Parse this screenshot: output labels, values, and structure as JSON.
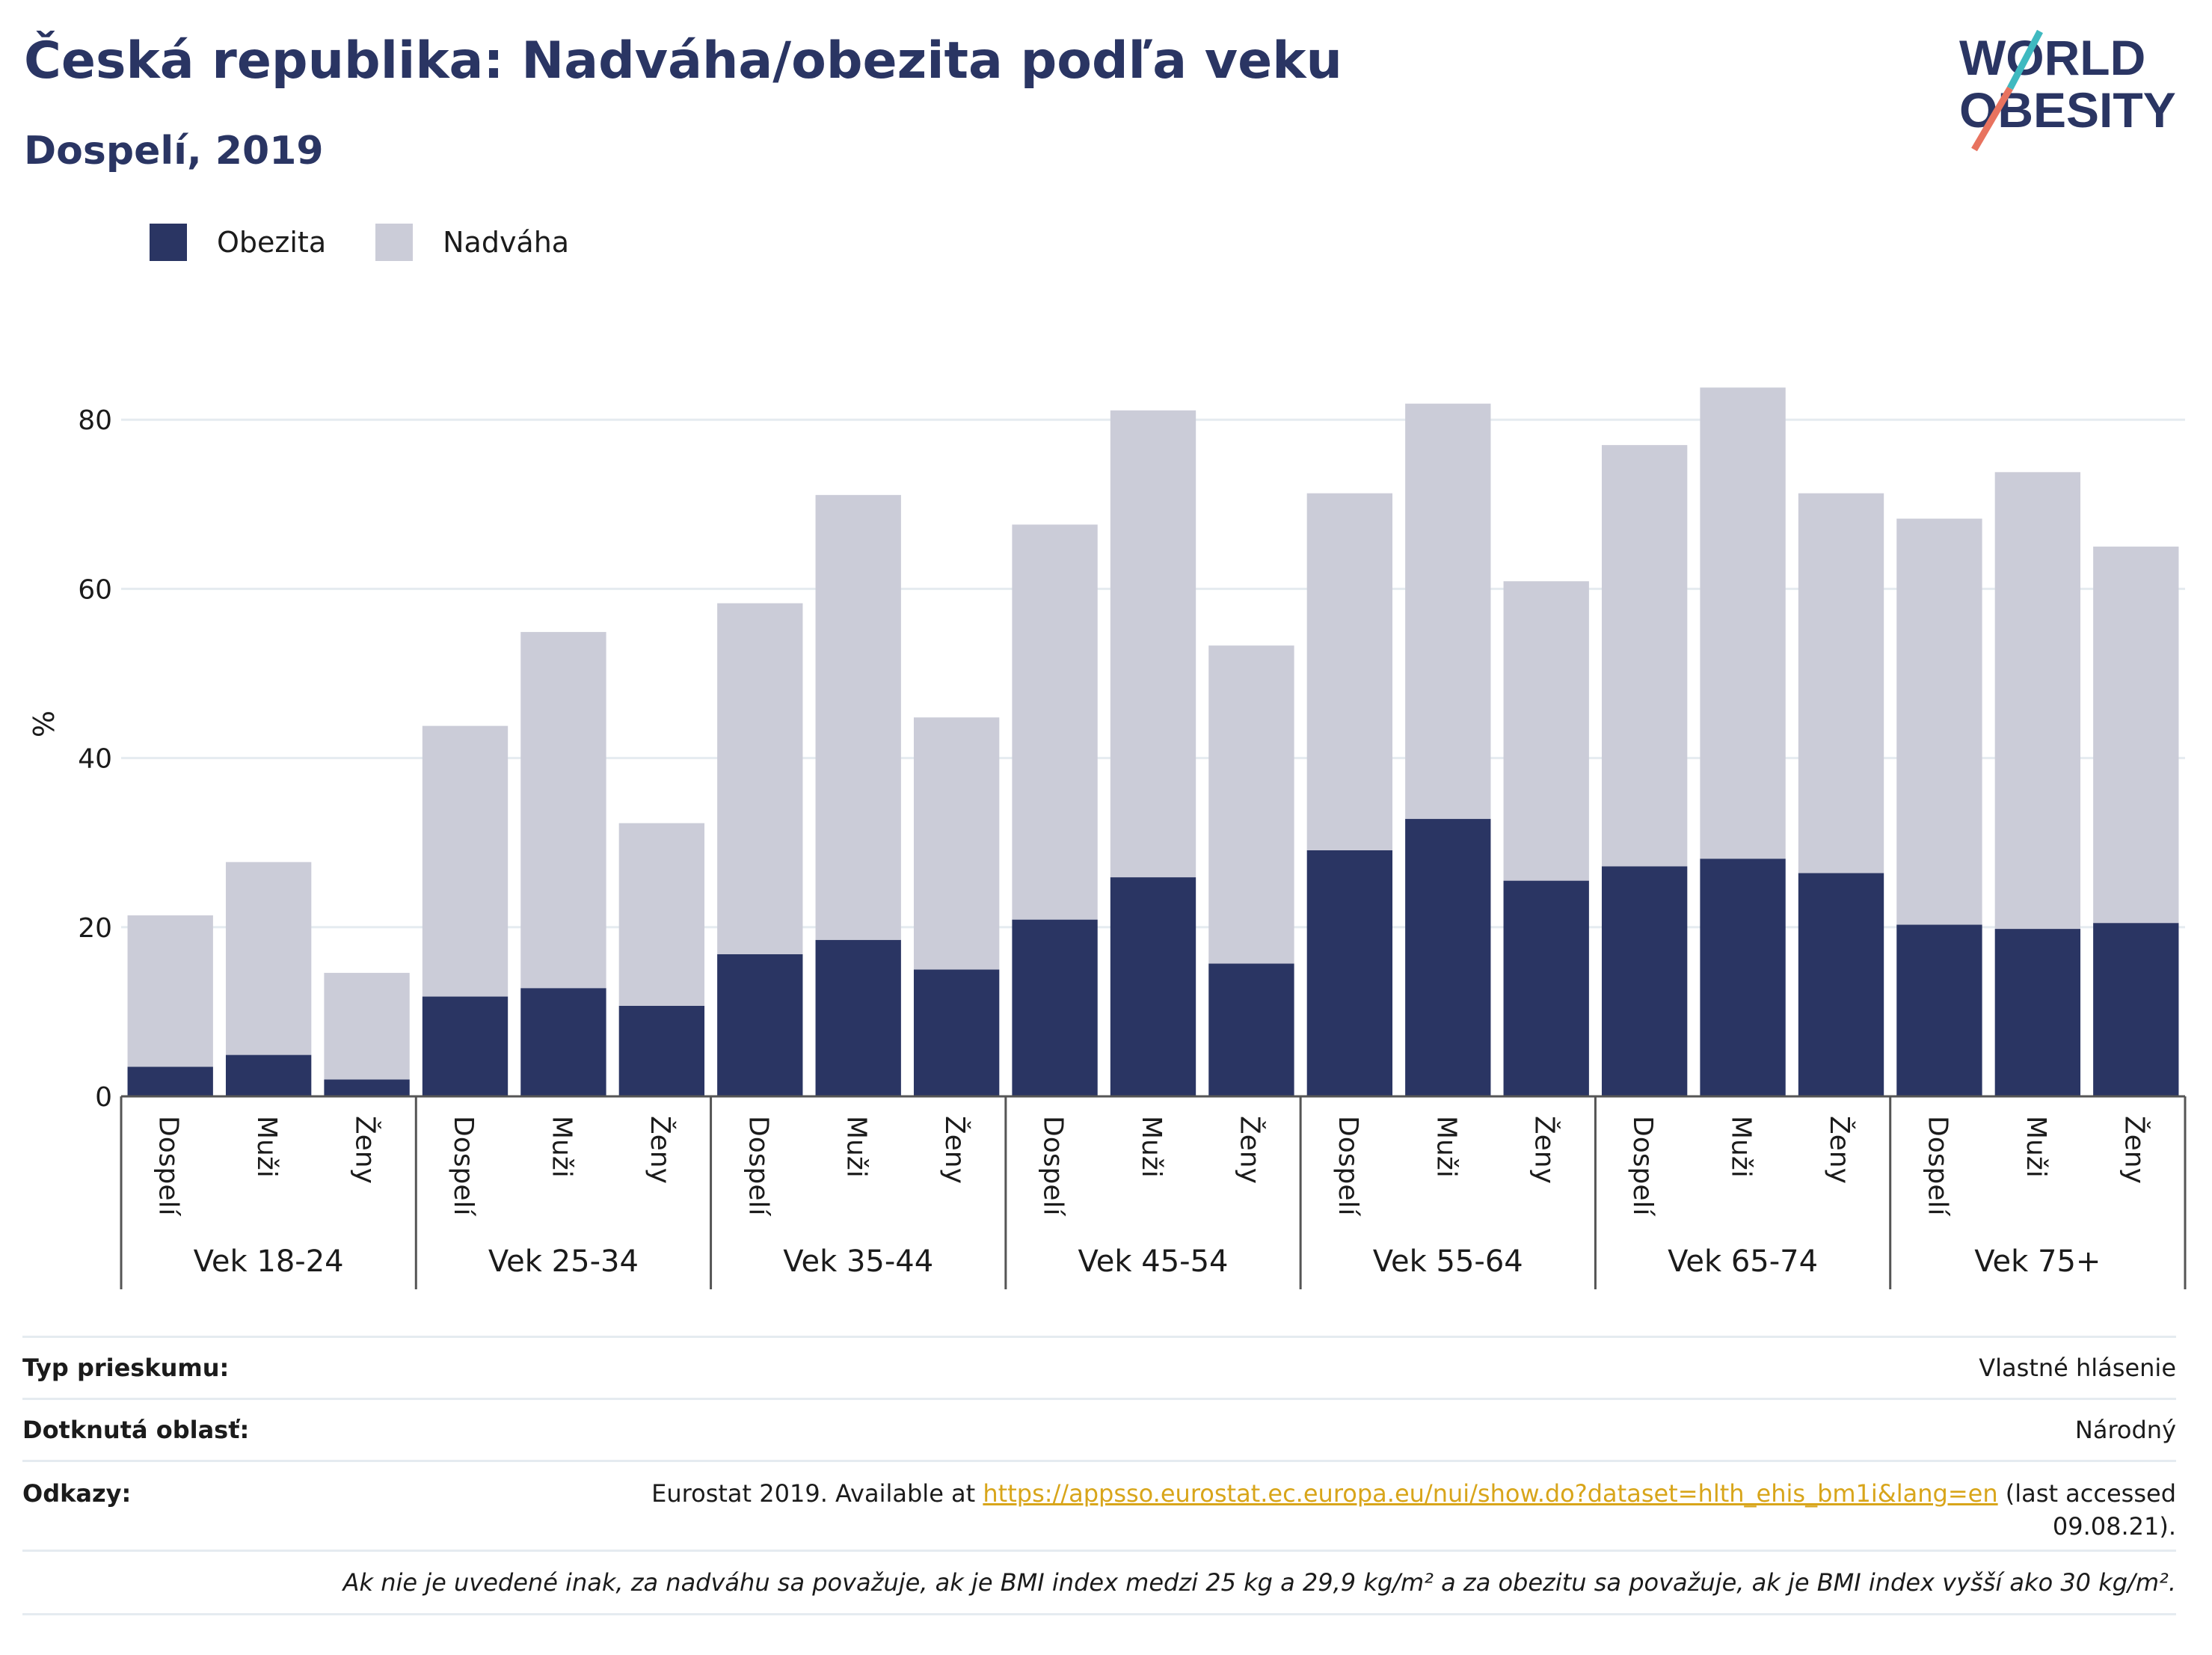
{
  "title": "Česká republika: Nadváha/obezita podľa veku",
  "subtitle": "Dospelí, 2019",
  "logo": {
    "text_line1": "WORLD",
    "text_line2": "OBESITY"
  },
  "legend": {
    "obesity": "Obezita",
    "overweight": "Nadváha"
  },
  "colors": {
    "obesity": "#2a3563",
    "overweight": "#cbccd8",
    "link": "#d8a51a",
    "grid": "#e5ebf0"
  },
  "chart_data": {
    "type": "bar",
    "stacked": true,
    "ylabel": "%",
    "ylim": [
      0,
      90
    ],
    "yticks": [
      0,
      20,
      40,
      60,
      80
    ],
    "grid": true,
    "legend_position": "top-left",
    "groups": [
      "Vek 18-24",
      "Vek 25-34",
      "Vek 35-44",
      "Vek 45-54",
      "Vek 55-64",
      "Vek 65-74",
      "Vek 75+"
    ],
    "subcategories": [
      "Dospelí",
      "Muži",
      "Ženy"
    ],
    "series": [
      {
        "name": "Obezita",
        "values": [
          3.5,
          4.9,
          2.0,
          11.8,
          12.8,
          10.7,
          16.8,
          18.5,
          15.0,
          20.9,
          25.9,
          15.7,
          29.1,
          32.8,
          25.5,
          27.2,
          28.1,
          26.4,
          20.3,
          19.8,
          20.5
        ]
      },
      {
        "name": "Nadváha",
        "values": [
          17.9,
          22.8,
          12.6,
          32.0,
          42.1,
          21.6,
          41.5,
          52.6,
          29.8,
          46.7,
          55.2,
          37.6,
          42.2,
          49.1,
          35.4,
          49.8,
          55.7,
          44.9,
          48.0,
          54.0,
          44.5
        ]
      }
    ]
  },
  "info": {
    "survey_type_label": "Typ prieskumu:",
    "survey_type_value": "Vlastné hlásenie",
    "area_label": "Dotknutá oblasť:",
    "area_value": "Národný",
    "refs_label": "Odkazy:",
    "refs_prefix": "Eurostat 2019. Available at ",
    "refs_link": "https://appsso.eurostat.ec.europa.eu/nui/show.do?dataset=hlth_ehis_bm1i&lang=en",
    "refs_suffix": " (last accessed 09.08.21).",
    "note": "Ak nie je uvedené inak, za nadváhu sa považuje, ak je BMI index medzi 25 kg a 29,9 kg/m² a za obezitu sa považuje, ak je BMI index vyšší ako 30 kg/m²."
  }
}
